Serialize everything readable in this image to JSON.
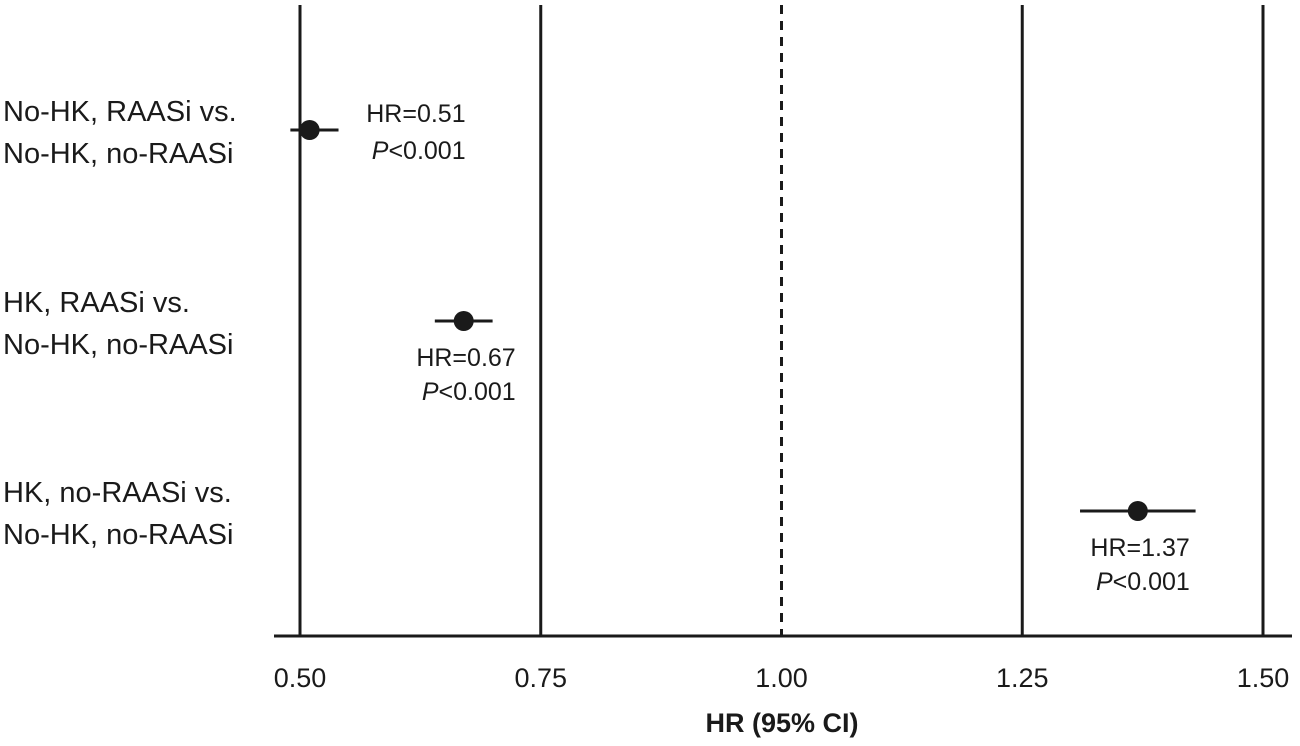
{
  "chart_data": {
    "type": "scatter",
    "xlabel": "HR (95% CI)",
    "xlim": [
      0.5,
      1.5
    ],
    "x_ticks": [
      0.5,
      0.75,
      1.0,
      1.25,
      1.5
    ],
    "x_tick_labels": [
      "0.50",
      "0.75",
      "1.00",
      "1.25",
      "1.50"
    ],
    "vertical_lines": [
      {
        "x": 0.5,
        "style": "solid"
      },
      {
        "x": 0.75,
        "style": "solid"
      },
      {
        "x": 1.0,
        "style": "dashed"
      },
      {
        "x": 1.25,
        "style": "solid"
      },
      {
        "x": 1.5,
        "style": "solid"
      }
    ],
    "categories": [
      {
        "line1": "No-HK, RAASi vs.",
        "line2": "No-HK, no-RAASi"
      },
      {
        "line1": "HK, RAASi vs.",
        "line2": "No-HK, no-RAASi"
      },
      {
        "line1": "HK, no-RAASi  vs.",
        "line2": "No-HK, no-RAASi"
      }
    ],
    "points": [
      {
        "hr": 0.51,
        "ci": [
          0.49,
          0.54
        ],
        "hr_label": "HR=0.51",
        "p_prefix": "P",
        "p_suffix": "<0.001",
        "annotation_side": "right"
      },
      {
        "hr": 0.67,
        "ci": [
          0.64,
          0.7
        ],
        "hr_label": "HR=0.67",
        "p_prefix": "P",
        "p_suffix": "<0.001",
        "annotation_side": "below"
      },
      {
        "hr": 1.37,
        "ci": [
          1.31,
          1.43
        ],
        "hr_label": "HR=1.37",
        "p_prefix": "P",
        "p_suffix": "<0.001",
        "annotation_side": "below"
      }
    ],
    "grid": false,
    "colors": {
      "ink": "#1a1a1a",
      "background": "#ffffff"
    }
  }
}
